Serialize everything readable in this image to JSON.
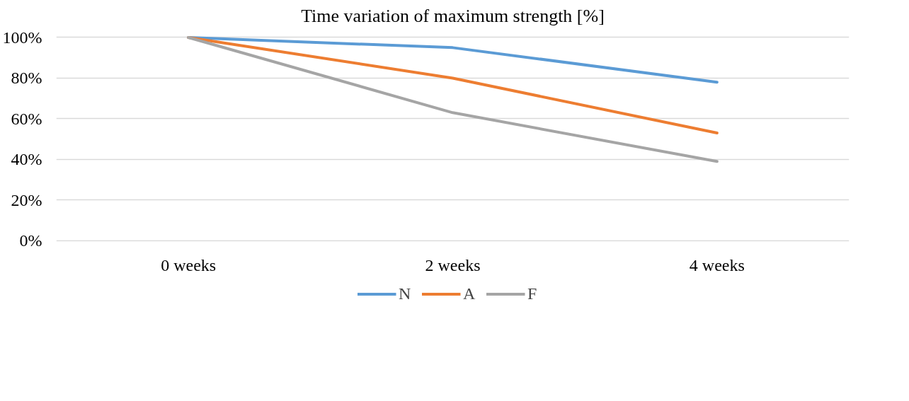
{
  "chart_data": {
    "type": "line",
    "title": "Time variation of maximum strength [%]",
    "categories": [
      "0 weeks",
      "2 weeks",
      "4 weeks"
    ],
    "series": [
      {
        "name": "N",
        "color": "#5b9bd5",
        "values": [
          100,
          95,
          78
        ]
      },
      {
        "name": "A",
        "color": "#ed7d31",
        "values": [
          100,
          80,
          53
        ]
      },
      {
        "name": "F",
        "color": "#a5a5a5",
        "values": [
          100,
          63,
          39
        ]
      }
    ],
    "ylim": [
      0,
      100
    ],
    "yticks": [
      {
        "value": 0,
        "label": "0%"
      },
      {
        "value": 20,
        "label": "20%"
      },
      {
        "value": 40,
        "label": "40%"
      },
      {
        "value": 60,
        "label": "60%"
      },
      {
        "value": 80,
        "label": "80%"
      },
      {
        "value": 100,
        "label": "100%"
      }
    ],
    "grid": "y",
    "legend": "bottom",
    "marker": "none",
    "line_style": "solid"
  }
}
